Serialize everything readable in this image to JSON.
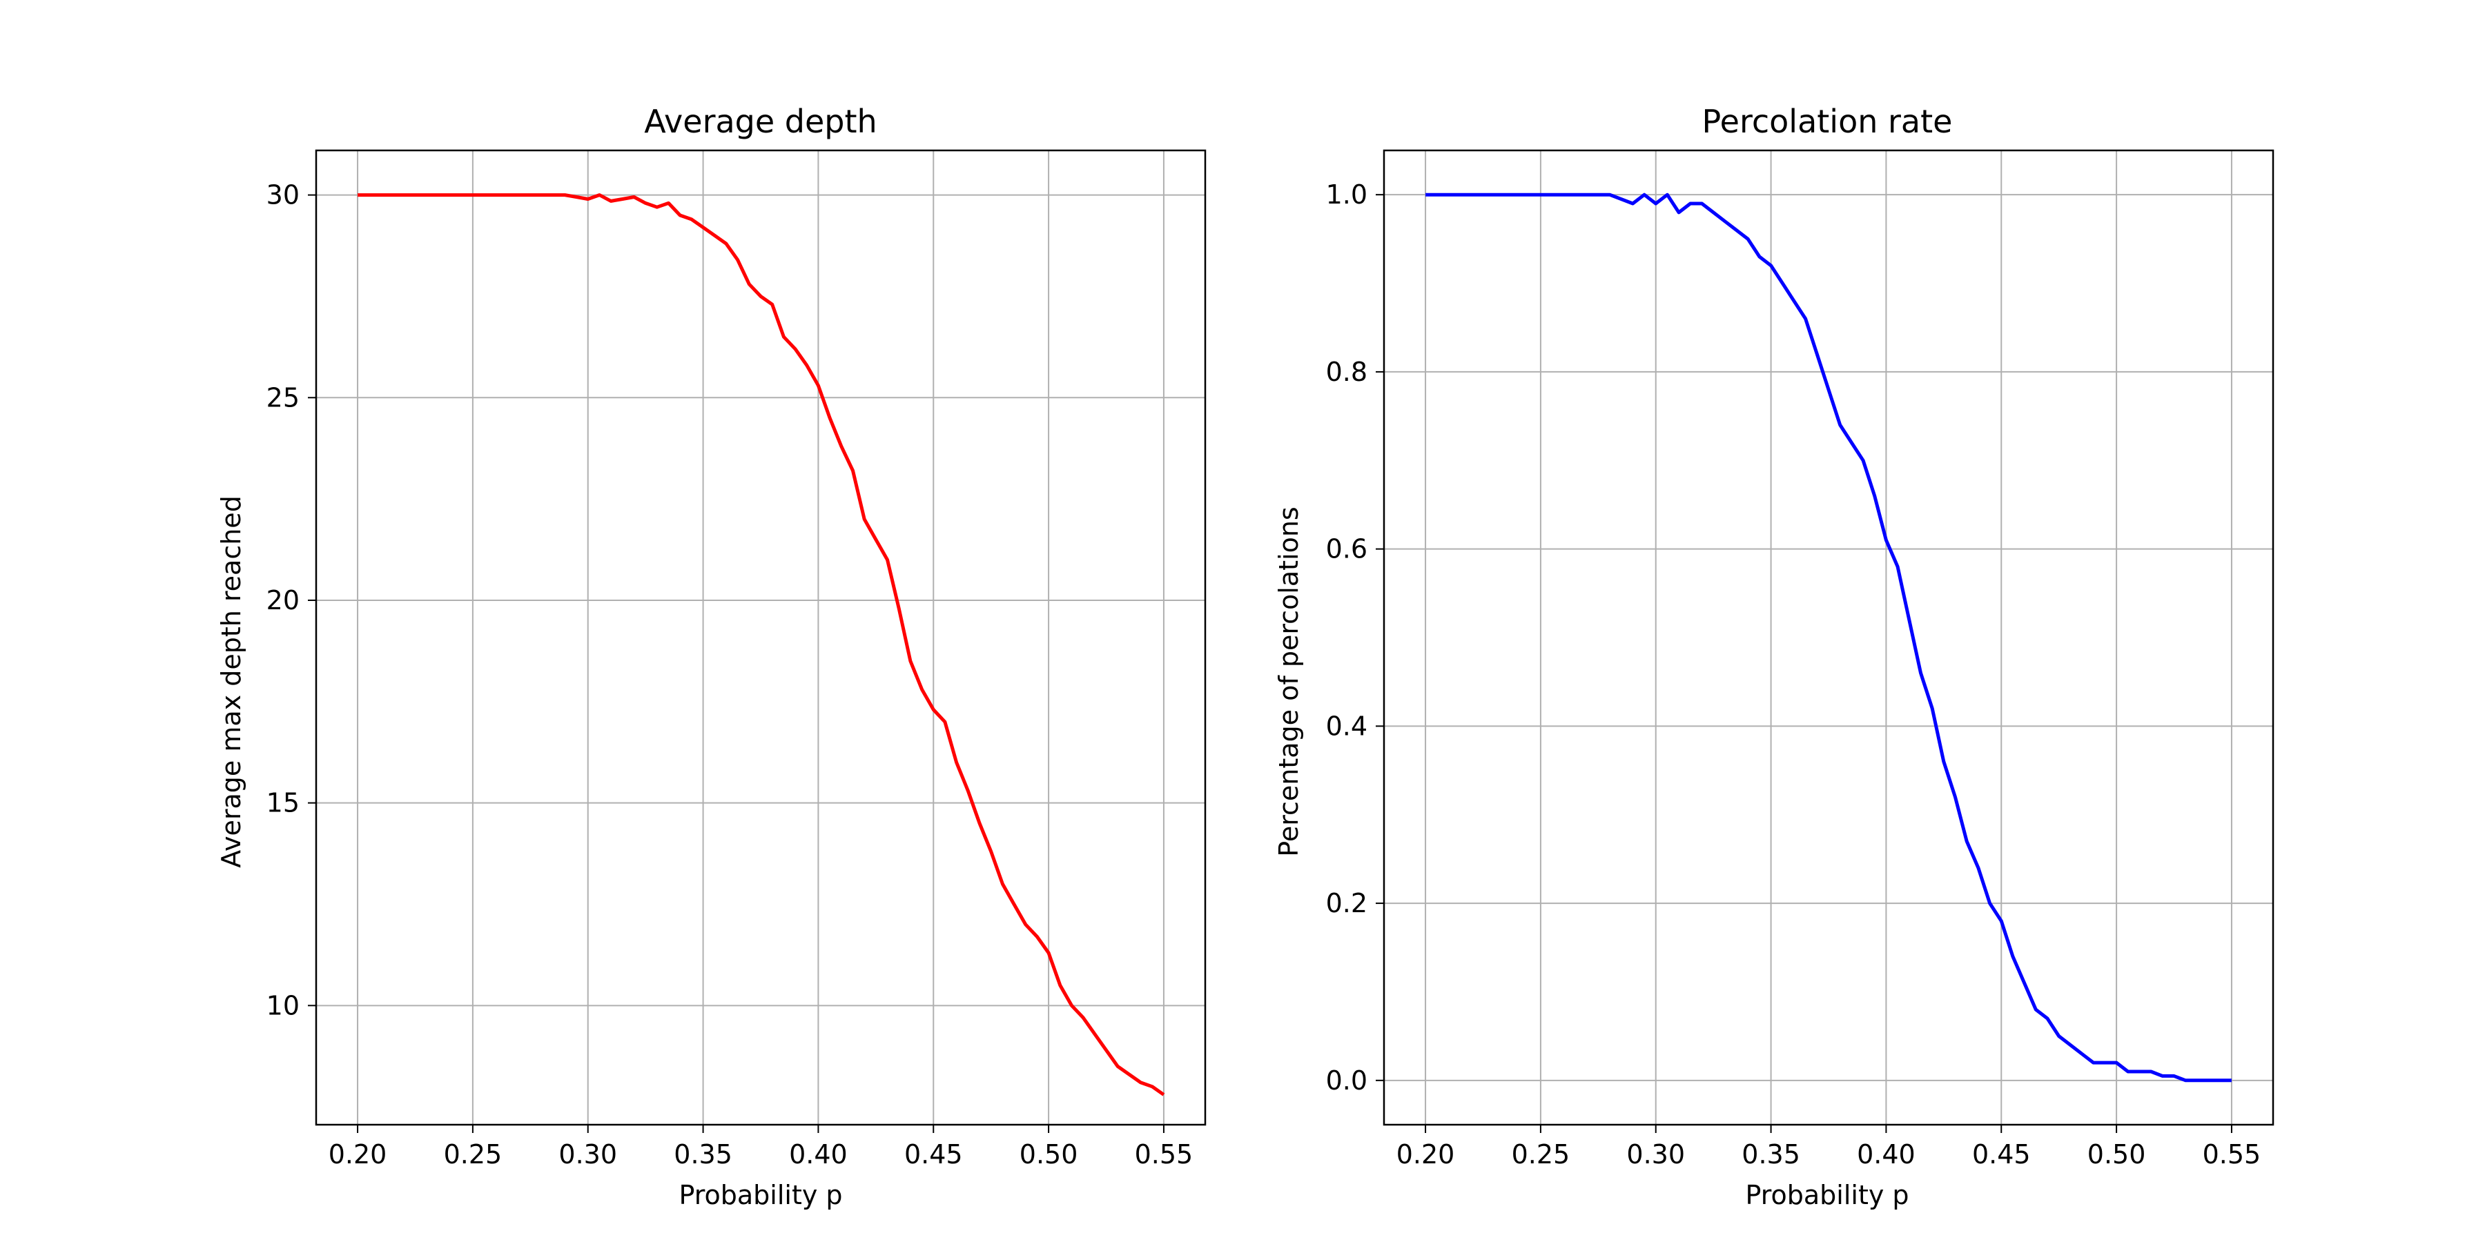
{
  "chart_data": [
    {
      "type": "line",
      "title": "Average depth",
      "xlabel": "Probability p",
      "ylabel": "Average max depth reached",
      "xlim": [
        0.182,
        0.568
      ],
      "ylim": [
        7.06,
        31.1
      ],
      "xticks": [
        0.2,
        0.25,
        0.3,
        0.35,
        0.4,
        0.45,
        0.5,
        0.55
      ],
      "yticks": [
        10,
        15,
        20,
        25,
        30
      ],
      "tick_decimals_x": 2,
      "tick_decimals_y": 0,
      "grid": true,
      "color": "#ff0000",
      "series": [
        {
          "x": [
            0.2,
            0.21,
            0.22,
            0.23,
            0.24,
            0.25,
            0.26,
            0.27,
            0.28,
            0.29,
            0.295,
            0.3,
            0.305,
            0.31,
            0.315,
            0.32,
            0.325,
            0.33,
            0.335,
            0.34,
            0.345,
            0.35,
            0.355,
            0.36,
            0.365,
            0.37,
            0.375,
            0.38,
            0.385,
            0.39,
            0.395,
            0.4,
            0.405,
            0.41,
            0.415,
            0.42,
            0.425,
            0.43,
            0.435,
            0.44,
            0.445,
            0.45,
            0.455,
            0.46,
            0.465,
            0.47,
            0.475,
            0.48,
            0.485,
            0.49,
            0.495,
            0.5,
            0.505,
            0.51,
            0.515,
            0.52,
            0.525,
            0.53,
            0.535,
            0.54,
            0.545,
            0.55
          ],
          "y": [
            30.0,
            30.0,
            30.0,
            30.0,
            30.0,
            30.0,
            30.0,
            30.0,
            30.0,
            30.0,
            29.95,
            29.9,
            30.0,
            29.85,
            29.9,
            29.95,
            29.8,
            29.7,
            29.8,
            29.5,
            29.4,
            29.2,
            29.0,
            28.8,
            28.4,
            27.8,
            27.5,
            27.3,
            26.5,
            26.2,
            25.8,
            25.3,
            24.5,
            23.8,
            23.2,
            22.0,
            21.5,
            21.0,
            19.8,
            18.5,
            17.8,
            17.3,
            17.0,
            16.0,
            15.3,
            14.5,
            13.8,
            13.0,
            12.5,
            12.0,
            11.7,
            11.3,
            10.5,
            10.0,
            9.7,
            9.3,
            8.9,
            8.5,
            8.3,
            8.1,
            8.0,
            7.8
          ]
        }
      ]
    },
    {
      "type": "line",
      "title": "Percolation rate",
      "xlabel": "Probability p",
      "ylabel": "Percentage of percolations",
      "xlim": [
        0.182,
        0.568
      ],
      "ylim": [
        -0.05,
        1.05
      ],
      "xticks": [
        0.2,
        0.25,
        0.3,
        0.35,
        0.4,
        0.45,
        0.5,
        0.55
      ],
      "yticks": [
        0.0,
        0.2,
        0.4,
        0.6,
        0.8,
        1.0
      ],
      "tick_decimals_x": 2,
      "tick_decimals_y": 1,
      "grid": true,
      "color": "#0000ff",
      "series": [
        {
          "x": [
            0.2,
            0.21,
            0.22,
            0.23,
            0.24,
            0.25,
            0.26,
            0.27,
            0.28,
            0.29,
            0.295,
            0.3,
            0.305,
            0.31,
            0.315,
            0.32,
            0.325,
            0.33,
            0.335,
            0.34,
            0.345,
            0.35,
            0.355,
            0.36,
            0.365,
            0.37,
            0.375,
            0.38,
            0.385,
            0.39,
            0.395,
            0.4,
            0.405,
            0.41,
            0.415,
            0.42,
            0.425,
            0.43,
            0.435,
            0.44,
            0.445,
            0.45,
            0.455,
            0.46,
            0.465,
            0.47,
            0.475,
            0.48,
            0.485,
            0.49,
            0.495,
            0.5,
            0.505,
            0.51,
            0.515,
            0.52,
            0.525,
            0.53,
            0.535,
            0.54,
            0.545,
            0.55
          ],
          "y": [
            1.0,
            1.0,
            1.0,
            1.0,
            1.0,
            1.0,
            1.0,
            1.0,
            1.0,
            0.99,
            1.0,
            0.99,
            1.0,
            0.98,
            0.99,
            0.99,
            0.98,
            0.97,
            0.96,
            0.95,
            0.93,
            0.92,
            0.9,
            0.88,
            0.86,
            0.82,
            0.78,
            0.74,
            0.72,
            0.7,
            0.66,
            0.61,
            0.58,
            0.52,
            0.46,
            0.42,
            0.36,
            0.32,
            0.27,
            0.24,
            0.2,
            0.18,
            0.14,
            0.11,
            0.08,
            0.07,
            0.05,
            0.04,
            0.03,
            0.02,
            0.02,
            0.02,
            0.01,
            0.01,
            0.01,
            0.005,
            0.005,
            0.0,
            0.0,
            0.0,
            0.0,
            0.0
          ]
        }
      ]
    }
  ]
}
